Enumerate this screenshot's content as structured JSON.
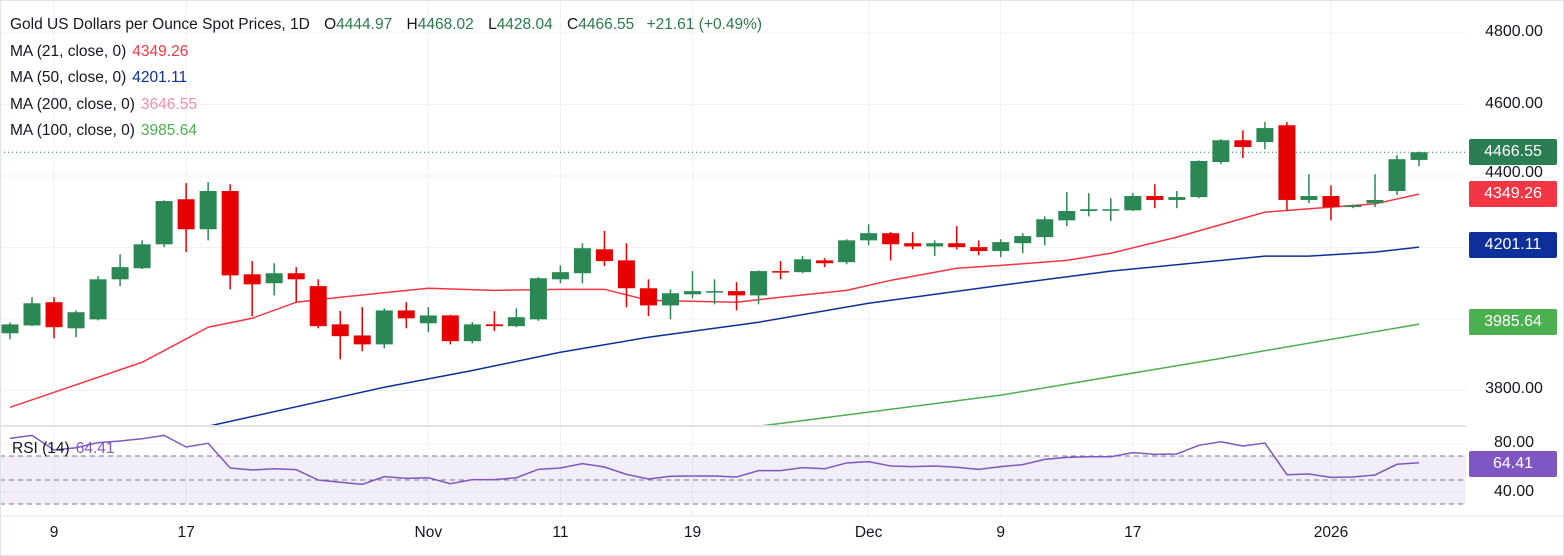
{
  "header": {
    "title": "Gold US Dollars per Ounce Spot Prices, 1D",
    "open_label": "O",
    "open": "4444.97",
    "high_label": "H",
    "high": "4468.02",
    "low_label": "L",
    "low": "4428.04",
    "close_label": "C",
    "close": "4466.55",
    "change": "+21.61 (+0.49%)"
  },
  "indicators": [
    {
      "label": "MA (21, close, 0)",
      "value": "4349.26",
      "color": "#f23645"
    },
    {
      "label": "MA (50, close, 0)",
      "value": "4201.11",
      "color": "#0d2f9a"
    },
    {
      "label": "MA (200, close, 0)",
      "value": "3646.55",
      "color": "#f48fb1"
    },
    {
      "label": "MA (100, close, 0)",
      "value": "3985.64",
      "color": "#4caf50"
    }
  ],
  "rsi": {
    "label": "RSI (14)",
    "value": "64.41",
    "color": "#7e57c2"
  },
  "price_tags": [
    {
      "value": "4466.55",
      "color": "#2b7d52"
    },
    {
      "value": "4349.26",
      "color": "#f23645"
    },
    {
      "value": "4201.11",
      "color": "#0d2f9a"
    },
    {
      "value": "3985.64",
      "color": "#4caf50"
    },
    {
      "value": "64.41",
      "color": "#7e57c2",
      "pane": "rsi"
    }
  ],
  "chart_data": {
    "type": "candlestick",
    "title": "Gold US Dollars per Ounce Spot Prices, 1D",
    "up_color": "#2b8754",
    "down_color": "#e60000",
    "ylim": [
      3700,
      4900
    ],
    "price_ticks": [
      "4800.00",
      "4600.00",
      "4400.00",
      "3800.00"
    ],
    "price_gridlines": [
      4800,
      4600,
      4400,
      4200,
      4000,
      3800
    ],
    "last_price": 4466.55,
    "time_labels": [
      {
        "label": "9",
        "candle_index": 2
      },
      {
        "label": "17",
        "candle_index": 8
      },
      {
        "label": "Nov",
        "candle_index": 19
      },
      {
        "label": "11",
        "candle_index": 25
      },
      {
        "label": "19",
        "candle_index": 31
      },
      {
        "label": "Dec",
        "candle_index": 39
      },
      {
        "label": "9",
        "candle_index": 45
      },
      {
        "label": "17",
        "candle_index": 51
      },
      {
        "label": "2026",
        "candle_index": 60
      }
    ],
    "ohlc": [
      [
        3960,
        3990,
        3943,
        3985
      ],
      [
        3982,
        4061,
        3980,
        4044
      ],
      [
        4047,
        4061,
        3946,
        3977
      ],
      [
        3974,
        4024,
        3949,
        4019
      ],
      [
        3999,
        4120,
        3996,
        4111
      ],
      [
        4111,
        4181,
        4092,
        4145
      ],
      [
        4142,
        4220,
        4140,
        4209
      ],
      [
        4209,
        4332,
        4201,
        4330
      ],
      [
        4335,
        4380,
        4187,
        4251
      ],
      [
        4251,
        4383,
        4220,
        4358
      ],
      [
        4358,
        4377,
        4083,
        4122
      ],
      [
        4125,
        4162,
        4008,
        4097
      ],
      [
        4100,
        4156,
        4066,
        4128
      ],
      [
        4128,
        4145,
        4047,
        4111
      ],
      [
        4092,
        4111,
        3974,
        3980
      ],
      [
        3985,
        4022,
        3887,
        3952
      ],
      [
        3954,
        4033,
        3910,
        3929
      ],
      [
        3929,
        4030,
        3918,
        4024
      ],
      [
        4024,
        4047,
        3974,
        4002
      ],
      [
        3988,
        4033,
        3963,
        4010
      ],
      [
        4010,
        4012,
        3929,
        3938
      ],
      [
        3938,
        3991,
        3932,
        3985
      ],
      [
        3985,
        4022,
        3966,
        3980
      ],
      [
        3980,
        4030,
        3977,
        4005
      ],
      [
        3999,
        4117,
        3995,
        4114
      ],
      [
        4111,
        4150,
        4100,
        4131
      ],
      [
        4128,
        4212,
        4100,
        4198
      ],
      [
        4195,
        4246,
        4148,
        4162
      ],
      [
        4164,
        4212,
        4033,
        4086
      ],
      [
        4086,
        4111,
        4008,
        4038
      ],
      [
        4038,
        4083,
        3999,
        4072
      ],
      [
        4069,
        4134,
        4058,
        4078
      ],
      [
        4074,
        4111,
        4041,
        4078
      ],
      [
        4078,
        4103,
        4024,
        4066
      ],
      [
        4066,
        4136,
        4041,
        4134
      ],
      [
        4134,
        4162,
        4111,
        4131
      ],
      [
        4131,
        4176,
        4128,
        4167
      ],
      [
        4164,
        4170,
        4145,
        4156
      ],
      [
        4159,
        4223,
        4153,
        4220
      ],
      [
        4220,
        4265,
        4206,
        4240
      ],
      [
        4240,
        4243,
        4164,
        4209
      ],
      [
        4212,
        4243,
        4195,
        4203
      ],
      [
        4203,
        4220,
        4176,
        4212
      ],
      [
        4212,
        4260,
        4195,
        4201
      ],
      [
        4201,
        4220,
        4178,
        4190
      ],
      [
        4190,
        4223,
        4173,
        4215
      ],
      [
        4212,
        4240,
        4184,
        4232
      ],
      [
        4229,
        4287,
        4206,
        4279
      ],
      [
        4276,
        4355,
        4260,
        4302
      ],
      [
        4302,
        4352,
        4287,
        4307
      ],
      [
        4304,
        4338,
        4274,
        4307
      ],
      [
        4304,
        4352,
        4302,
        4344
      ],
      [
        4344,
        4377,
        4310,
        4333
      ],
      [
        4333,
        4358,
        4310,
        4341
      ],
      [
        4341,
        4444,
        4338,
        4442
      ],
      [
        4439,
        4503,
        4433,
        4500
      ],
      [
        4500,
        4528,
        4450,
        4481
      ],
      [
        4495,
        4551,
        4475,
        4534
      ],
      [
        4542,
        4551,
        4304,
        4333
      ],
      [
        4333,
        4405,
        4324,
        4344
      ],
      [
        4344,
        4374,
        4276,
        4313
      ],
      [
        4313,
        4320,
        4310,
        4318
      ],
      [
        4324,
        4405,
        4313,
        4333
      ],
      [
        4358,
        4458,
        4347,
        4447
      ],
      [
        4444.97,
        4468.02,
        4428.04,
        4466.55
      ]
    ],
    "moving_averages": [
      {
        "name": "MA (21, close, 0)",
        "color": "#f23645",
        "points": [
          [
            0,
            3753
          ],
          [
            2,
            3795
          ],
          [
            6,
            3879
          ],
          [
            9,
            3977
          ],
          [
            11,
            4002
          ],
          [
            13,
            4047
          ],
          [
            15,
            4061
          ],
          [
            19,
            4086
          ],
          [
            22,
            4080
          ],
          [
            25,
            4083
          ],
          [
            27,
            4083
          ],
          [
            29,
            4052
          ],
          [
            33,
            4047
          ],
          [
            35,
            4061
          ],
          [
            38,
            4080
          ],
          [
            40,
            4108
          ],
          [
            43,
            4142
          ],
          [
            45,
            4150
          ],
          [
            48,
            4164
          ],
          [
            50,
            4184
          ],
          [
            53,
            4229
          ],
          [
            57,
            4299
          ],
          [
            60,
            4313
          ],
          [
            62,
            4322
          ],
          [
            64,
            4349.26
          ]
        ]
      },
      {
        "name": "MA (50, close, 0)",
        "color": "#0d2f9a",
        "points": [
          [
            9,
            3700
          ],
          [
            17,
            3809
          ],
          [
            21,
            3856
          ],
          [
            25,
            3907
          ],
          [
            29,
            3949
          ],
          [
            34,
            3991
          ],
          [
            39,
            4044
          ],
          [
            45,
            4094
          ],
          [
            50,
            4134
          ],
          [
            57,
            4176
          ],
          [
            59,
            4176
          ],
          [
            62,
            4187
          ],
          [
            64,
            4201.11
          ]
        ]
      },
      {
        "name": "MA (100, close, 0)",
        "color": "#4caf50",
        "points": [
          [
            34,
            3700
          ],
          [
            45,
            3787
          ],
          [
            55,
            3890
          ],
          [
            64,
            3985.64
          ]
        ]
      }
    ],
    "rsi": {
      "period": 14,
      "ylim": [
        15,
        95
      ],
      "ticks": [
        "80.00",
        "40.00"
      ],
      "bands": [
        70,
        50,
        30
      ],
      "values": [
        84.7,
        87.2,
        75,
        76.9,
        81.1,
        82.5,
        84.4,
        87.2,
        77.5,
        80.6,
        60,
        58.3,
        59.4,
        58.6,
        50,
        48.1,
        46.4,
        52.8,
        51.4,
        51.9,
        46.9,
        50.3,
        50.3,
        51.9,
        58.9,
        60,
        63.6,
        60.8,
        54.7,
        50.8,
        53.1,
        53.3,
        53.3,
        52.5,
        57.8,
        57.8,
        60.3,
        59.4,
        64.2,
        65.3,
        61.7,
        61.1,
        61.7,
        60.6,
        58.9,
        61.1,
        62.8,
        67.2,
        68.9,
        69.4,
        69.4,
        72.8,
        71.4,
        71.7,
        78.9,
        81.9,
        78.3,
        80.8,
        54.4,
        55,
        52.2,
        52.5,
        54.2,
        63.1,
        64.41
      ]
    }
  }
}
